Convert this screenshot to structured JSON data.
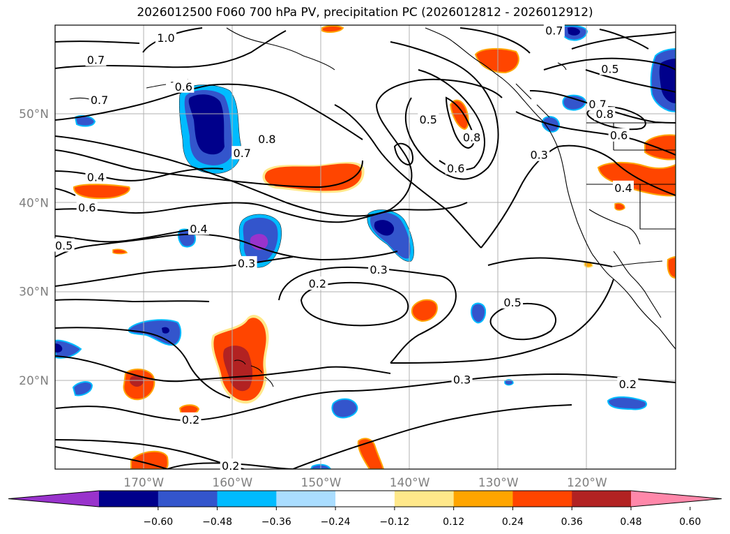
{
  "title": "2026012500 F060 700 hPa PV, precipitation PC (2026012812 - 2026012912)",
  "map": {
    "lat_labels": [
      "50°N",
      "40°N",
      "30°N",
      "20°N"
    ],
    "lon_labels": [
      "170°W",
      "160°W",
      "150°W",
      "140°W",
      "130°W",
      "120°W"
    ],
    "lat_values": [
      50,
      40,
      30,
      20
    ],
    "lon_values": [
      -170,
      -160,
      -150,
      -140,
      -130,
      -120
    ],
    "extent": {
      "lon": [
        -180,
        -110
      ],
      "lat": [
        10,
        60
      ]
    },
    "grid": true,
    "contour_labels": [
      {
        "text": "1.0",
        "lon": -167.5,
        "lat": 58.6
      },
      {
        "text": "0.7",
        "lon": -175.4,
        "lat": 56.1
      },
      {
        "text": "0.7",
        "lon": -175.0,
        "lat": 51.6
      },
      {
        "text": "0.6",
        "lon": -165.5,
        "lat": 53.1
      },
      {
        "text": "0.7",
        "lon": -123.7,
        "lat": 59.4
      },
      {
        "text": "0.5",
        "lon": -117.4,
        "lat": 55.1
      },
      {
        "text": "0.7",
        "lon": -118.8,
        "lat": 51.1
      },
      {
        "text": "0.8",
        "lon": -118.0,
        "lat": 50.0
      },
      {
        "text": "0.6",
        "lon": -116.4,
        "lat": 47.6
      },
      {
        "text": "0.4",
        "lon": -115.9,
        "lat": 41.7
      },
      {
        "text": "0.5",
        "lon": -137.9,
        "lat": 49.4
      },
      {
        "text": "0.8",
        "lon": -133.0,
        "lat": 47.4
      },
      {
        "text": "0.6",
        "lon": -134.8,
        "lat": 43.9
      },
      {
        "text": "0.3",
        "lon": -125.4,
        "lat": 45.4
      },
      {
        "text": "0.8",
        "lon": -156.1,
        "lat": 47.2
      },
      {
        "text": "0.7",
        "lon": -158.9,
        "lat": 45.6
      },
      {
        "text": "0.4",
        "lon": -175.4,
        "lat": 42.9
      },
      {
        "text": "0.6",
        "lon": -176.4,
        "lat": 39.5
      },
      {
        "text": "0.5",
        "lon": -179.0,
        "lat": 35.2
      },
      {
        "text": "0.4",
        "lon": -163.8,
        "lat": 37.1
      },
      {
        "text": "0.3",
        "lon": -158.4,
        "lat": 33.2
      },
      {
        "text": "0.3",
        "lon": -143.5,
        "lat": 32.5
      },
      {
        "text": "0.2",
        "lon": -150.4,
        "lat": 30.9
      },
      {
        "text": "0.5",
        "lon": -128.4,
        "lat": 28.8
      },
      {
        "text": "0.3",
        "lon": -134.1,
        "lat": 20.1
      },
      {
        "text": "0.2",
        "lon": -115.4,
        "lat": 19.6
      },
      {
        "text": "0.2",
        "lon": -164.7,
        "lat": 15.6
      },
      {
        "text": "0.2",
        "lon": -160.2,
        "lat": 10.4
      }
    ]
  },
  "colorbar": {
    "ticks": [
      "−0.60",
      "−0.48",
      "−0.36",
      "−0.24",
      "−0.12",
      "0.12",
      "0.24",
      "0.36",
      "0.48",
      "0.60"
    ],
    "levels": [
      -0.6,
      -0.48,
      -0.36,
      -0.24,
      -0.12,
      0.12,
      0.24,
      0.36,
      0.48,
      0.6
    ],
    "colors": [
      "#9933cc",
      "#00008b",
      "#3355cc",
      "#00bbff",
      "#aaddff",
      "#ffffff",
      "#ffe88a",
      "#ffa500",
      "#ff4500",
      "#b22222",
      "#ff88aa"
    ]
  }
}
